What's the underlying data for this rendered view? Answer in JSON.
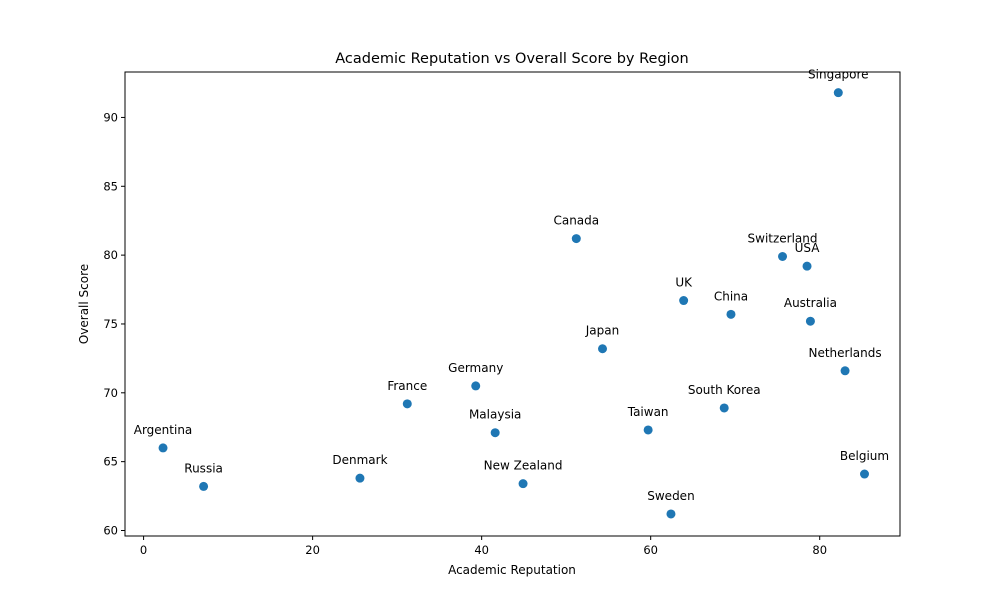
{
  "chart_data": {
    "type": "scatter",
    "title": "Academic Reputation vs Overall Score by Region",
    "xlabel": "Academic Reputation",
    "ylabel": "Overall Score",
    "xlim": [
      -2.2,
      89.5
    ],
    "ylim": [
      59.6,
      93.3
    ],
    "xticks": [
      0,
      20,
      40,
      60,
      80
    ],
    "yticks": [
      60,
      65,
      70,
      75,
      80,
      85,
      90
    ],
    "grid": false,
    "color": "#1f77b4",
    "points": [
      {
        "label": "Singapore",
        "x": 82.2,
        "y": 91.8
      },
      {
        "label": "Canada",
        "x": 51.2,
        "y": 81.2
      },
      {
        "label": "Switzerland",
        "x": 75.6,
        "y": 79.9
      },
      {
        "label": "USA",
        "x": 78.5,
        "y": 79.2
      },
      {
        "label": "UK",
        "x": 63.9,
        "y": 76.7
      },
      {
        "label": "China",
        "x": 69.5,
        "y": 75.7
      },
      {
        "label": "Australia",
        "x": 78.9,
        "y": 75.2
      },
      {
        "label": "Japan",
        "x": 54.3,
        "y": 73.2
      },
      {
        "label": "Netherlands",
        "x": 83.0,
        "y": 71.6
      },
      {
        "label": "Germany",
        "x": 39.3,
        "y": 70.5
      },
      {
        "label": "France",
        "x": 31.2,
        "y": 69.2
      },
      {
        "label": "South Korea",
        "x": 68.7,
        "y": 68.9
      },
      {
        "label": "Malaysia",
        "x": 41.6,
        "y": 67.1
      },
      {
        "label": "Taiwan",
        "x": 59.7,
        "y": 67.3
      },
      {
        "label": "Argentina",
        "x": 2.3,
        "y": 66.0
      },
      {
        "label": "Belgium",
        "x": 85.3,
        "y": 64.1
      },
      {
        "label": "Denmark",
        "x": 25.6,
        "y": 63.8
      },
      {
        "label": "New Zealand",
        "x": 44.9,
        "y": 63.4
      },
      {
        "label": "Russia",
        "x": 7.1,
        "y": 63.2
      },
      {
        "label": "Sweden",
        "x": 62.4,
        "y": 61.2
      }
    ]
  }
}
